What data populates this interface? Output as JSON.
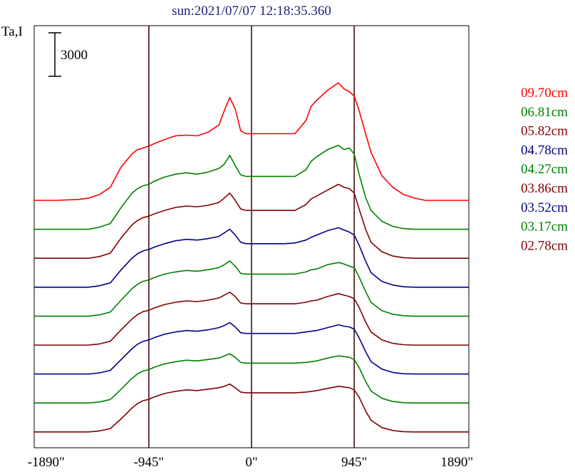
{
  "chart_data": {
    "type": "line",
    "title": "sun:2021/07/07 12:18:35.360",
    "ylabel": "Ta,I",
    "xlim": [
      -2000,
      2000
    ],
    "x_ticks": [
      -1890,
      -945,
      0,
      945,
      1890
    ],
    "x_tick_labels": [
      "-1890\"",
      "-945\"",
      "0\"",
      "945\"",
      "1890\""
    ],
    "vertical_lines": [
      -945,
      0,
      945
    ],
    "scale_bar": {
      "value": 3000,
      "label": "3000"
    },
    "legend_position": "right",
    "x": [
      -2000,
      -1800,
      -1600,
      -1500,
      -1400,
      -1300,
      -1200,
      -1100,
      -1050,
      -1000,
      -945,
      -900,
      -800,
      -700,
      -600,
      -500,
      -400,
      -300,
      -250,
      -200,
      -150,
      -100,
      -50,
      0,
      100,
      200,
      300,
      400,
      500,
      550,
      600,
      700,
      800,
      850,
      900,
      945,
      990,
      1050,
      1100,
      1200,
      1300,
      1400,
      1500,
      1600,
      1800,
      2000
    ],
    "series": [
      {
        "name": "09.70cm",
        "color": "#ff0000",
        "baseline": 0,
        "values": [
          0,
          0,
          60,
          150,
          400,
          900,
          2300,
          3200,
          3500,
          3600,
          3750,
          3900,
          4200,
          4450,
          4500,
          4450,
          4700,
          5200,
          6200,
          7100,
          6300,
          4800,
          4600,
          4600,
          4600,
          4600,
          4600,
          4600,
          5500,
          6500,
          6900,
          7600,
          8100,
          7700,
          7500,
          7200,
          6200,
          4600,
          3300,
          1700,
          900,
          400,
          150,
          0,
          0,
          0
        ]
      },
      {
        "name": "06.81cm",
        "color": "#008000",
        "baseline": 0,
        "values": [
          0,
          0,
          0,
          0,
          150,
          400,
          1500,
          2500,
          2800,
          3000,
          3100,
          3300,
          3600,
          3800,
          3900,
          3800,
          3950,
          4200,
          4500,
          5100,
          4400,
          3750,
          3650,
          3650,
          3650,
          3650,
          3650,
          3650,
          4100,
          4700,
          5000,
          5500,
          5800,
          5500,
          5600,
          5200,
          3800,
          2200,
          1300,
          550,
          200,
          50,
          0,
          0,
          0,
          0
        ]
      },
      {
        "name": "05.82cm",
        "color": "#800000",
        "baseline": 0,
        "values": [
          0,
          0,
          0,
          0,
          120,
          350,
          1400,
          2300,
          2600,
          2800,
          2900,
          3050,
          3300,
          3500,
          3600,
          3550,
          3650,
          3850,
          4150,
          4500,
          4000,
          3400,
          3300,
          3300,
          3300,
          3300,
          3300,
          3300,
          3700,
          4100,
          4300,
          4700,
          5100,
          4900,
          4800,
          4500,
          3400,
          2000,
          1100,
          450,
          150,
          40,
          0,
          0,
          0,
          0
        ]
      },
      {
        "name": "04.78cm",
        "color": "#00008b",
        "baseline": 0,
        "values": [
          0,
          0,
          0,
          0,
          100,
          300,
          1200,
          2000,
          2300,
          2500,
          2600,
          2750,
          3000,
          3200,
          3300,
          3250,
          3350,
          3500,
          3750,
          4000,
          3600,
          3100,
          3000,
          3000,
          3000,
          3000,
          3000,
          3050,
          3250,
          3450,
          3600,
          3900,
          4100,
          3950,
          3800,
          3600,
          2900,
          1800,
          1000,
          400,
          150,
          30,
          0,
          0,
          0,
          0
        ]
      },
      {
        "name": "04.27cm",
        "color": "#008000",
        "baseline": 0,
        "values": [
          0,
          0,
          0,
          0,
          90,
          280,
          1100,
          1900,
          2200,
          2400,
          2500,
          2650,
          2900,
          3050,
          3150,
          3100,
          3200,
          3350,
          3550,
          3800,
          3450,
          2950,
          2900,
          2900,
          2900,
          2900,
          2900,
          2900,
          3050,
          3200,
          3250,
          3550,
          3700,
          3600,
          3450,
          3350,
          2700,
          1700,
          950,
          380,
          130,
          30,
          0,
          0,
          0,
          0
        ]
      },
      {
        "name": "03.86cm",
        "color": "#800000",
        "baseline": 0,
        "values": [
          0,
          0,
          0,
          0,
          80,
          260,
          1050,
          1800,
          2100,
          2300,
          2400,
          2550,
          2800,
          2950,
          3050,
          3000,
          3100,
          3250,
          3450,
          3650,
          3350,
          2900,
          2850,
          2850,
          2850,
          2850,
          2850,
          2850,
          2950,
          3050,
          3100,
          3350,
          3550,
          3450,
          3350,
          3200,
          2600,
          1600,
          900,
          360,
          120,
          25,
          0,
          0,
          0,
          0
        ]
      },
      {
        "name": "03.52cm",
        "color": "#00008b",
        "baseline": 0,
        "values": [
          0,
          0,
          0,
          0,
          80,
          250,
          1000,
          1750,
          2050,
          2250,
          2350,
          2500,
          2750,
          2900,
          3000,
          2950,
          3050,
          3200,
          3350,
          3550,
          3250,
          2850,
          2800,
          2800,
          2800,
          2800,
          2800,
          2800,
          2900,
          2950,
          3000,
          3200,
          3400,
          3300,
          3250,
          3100,
          2500,
          1550,
          850,
          340,
          110,
          20,
          0,
          0,
          0,
          0
        ]
      },
      {
        "name": "03.17cm",
        "color": "#008000",
        "baseline": 0,
        "values": [
          0,
          0,
          0,
          0,
          70,
          240,
          950,
          1700,
          2000,
          2200,
          2300,
          2450,
          2700,
          2850,
          2950,
          2900,
          3000,
          3100,
          3250,
          3400,
          3150,
          2800,
          2750,
          2750,
          2750,
          2750,
          2750,
          2750,
          2800,
          2850,
          2900,
          3100,
          3250,
          3200,
          3150,
          3000,
          2450,
          1500,
          820,
          320,
          100,
          20,
          0,
          0,
          0,
          0
        ]
      },
      {
        "name": "02.78cm",
        "color": "#800000",
        "baseline": 0,
        "values": [
          0,
          0,
          0,
          0,
          70,
          230,
          900,
          1650,
          1950,
          2150,
          2250,
          2400,
          2650,
          2800,
          2900,
          2850,
          2950,
          3050,
          3150,
          3300,
          3050,
          2750,
          2700,
          2700,
          2700,
          2700,
          2700,
          2700,
          2750,
          2800,
          2850,
          3000,
          3150,
          3100,
          3050,
          2900,
          2400,
          1450,
          800,
          300,
          100,
          20,
          0,
          0,
          0,
          0
        ]
      }
    ]
  }
}
